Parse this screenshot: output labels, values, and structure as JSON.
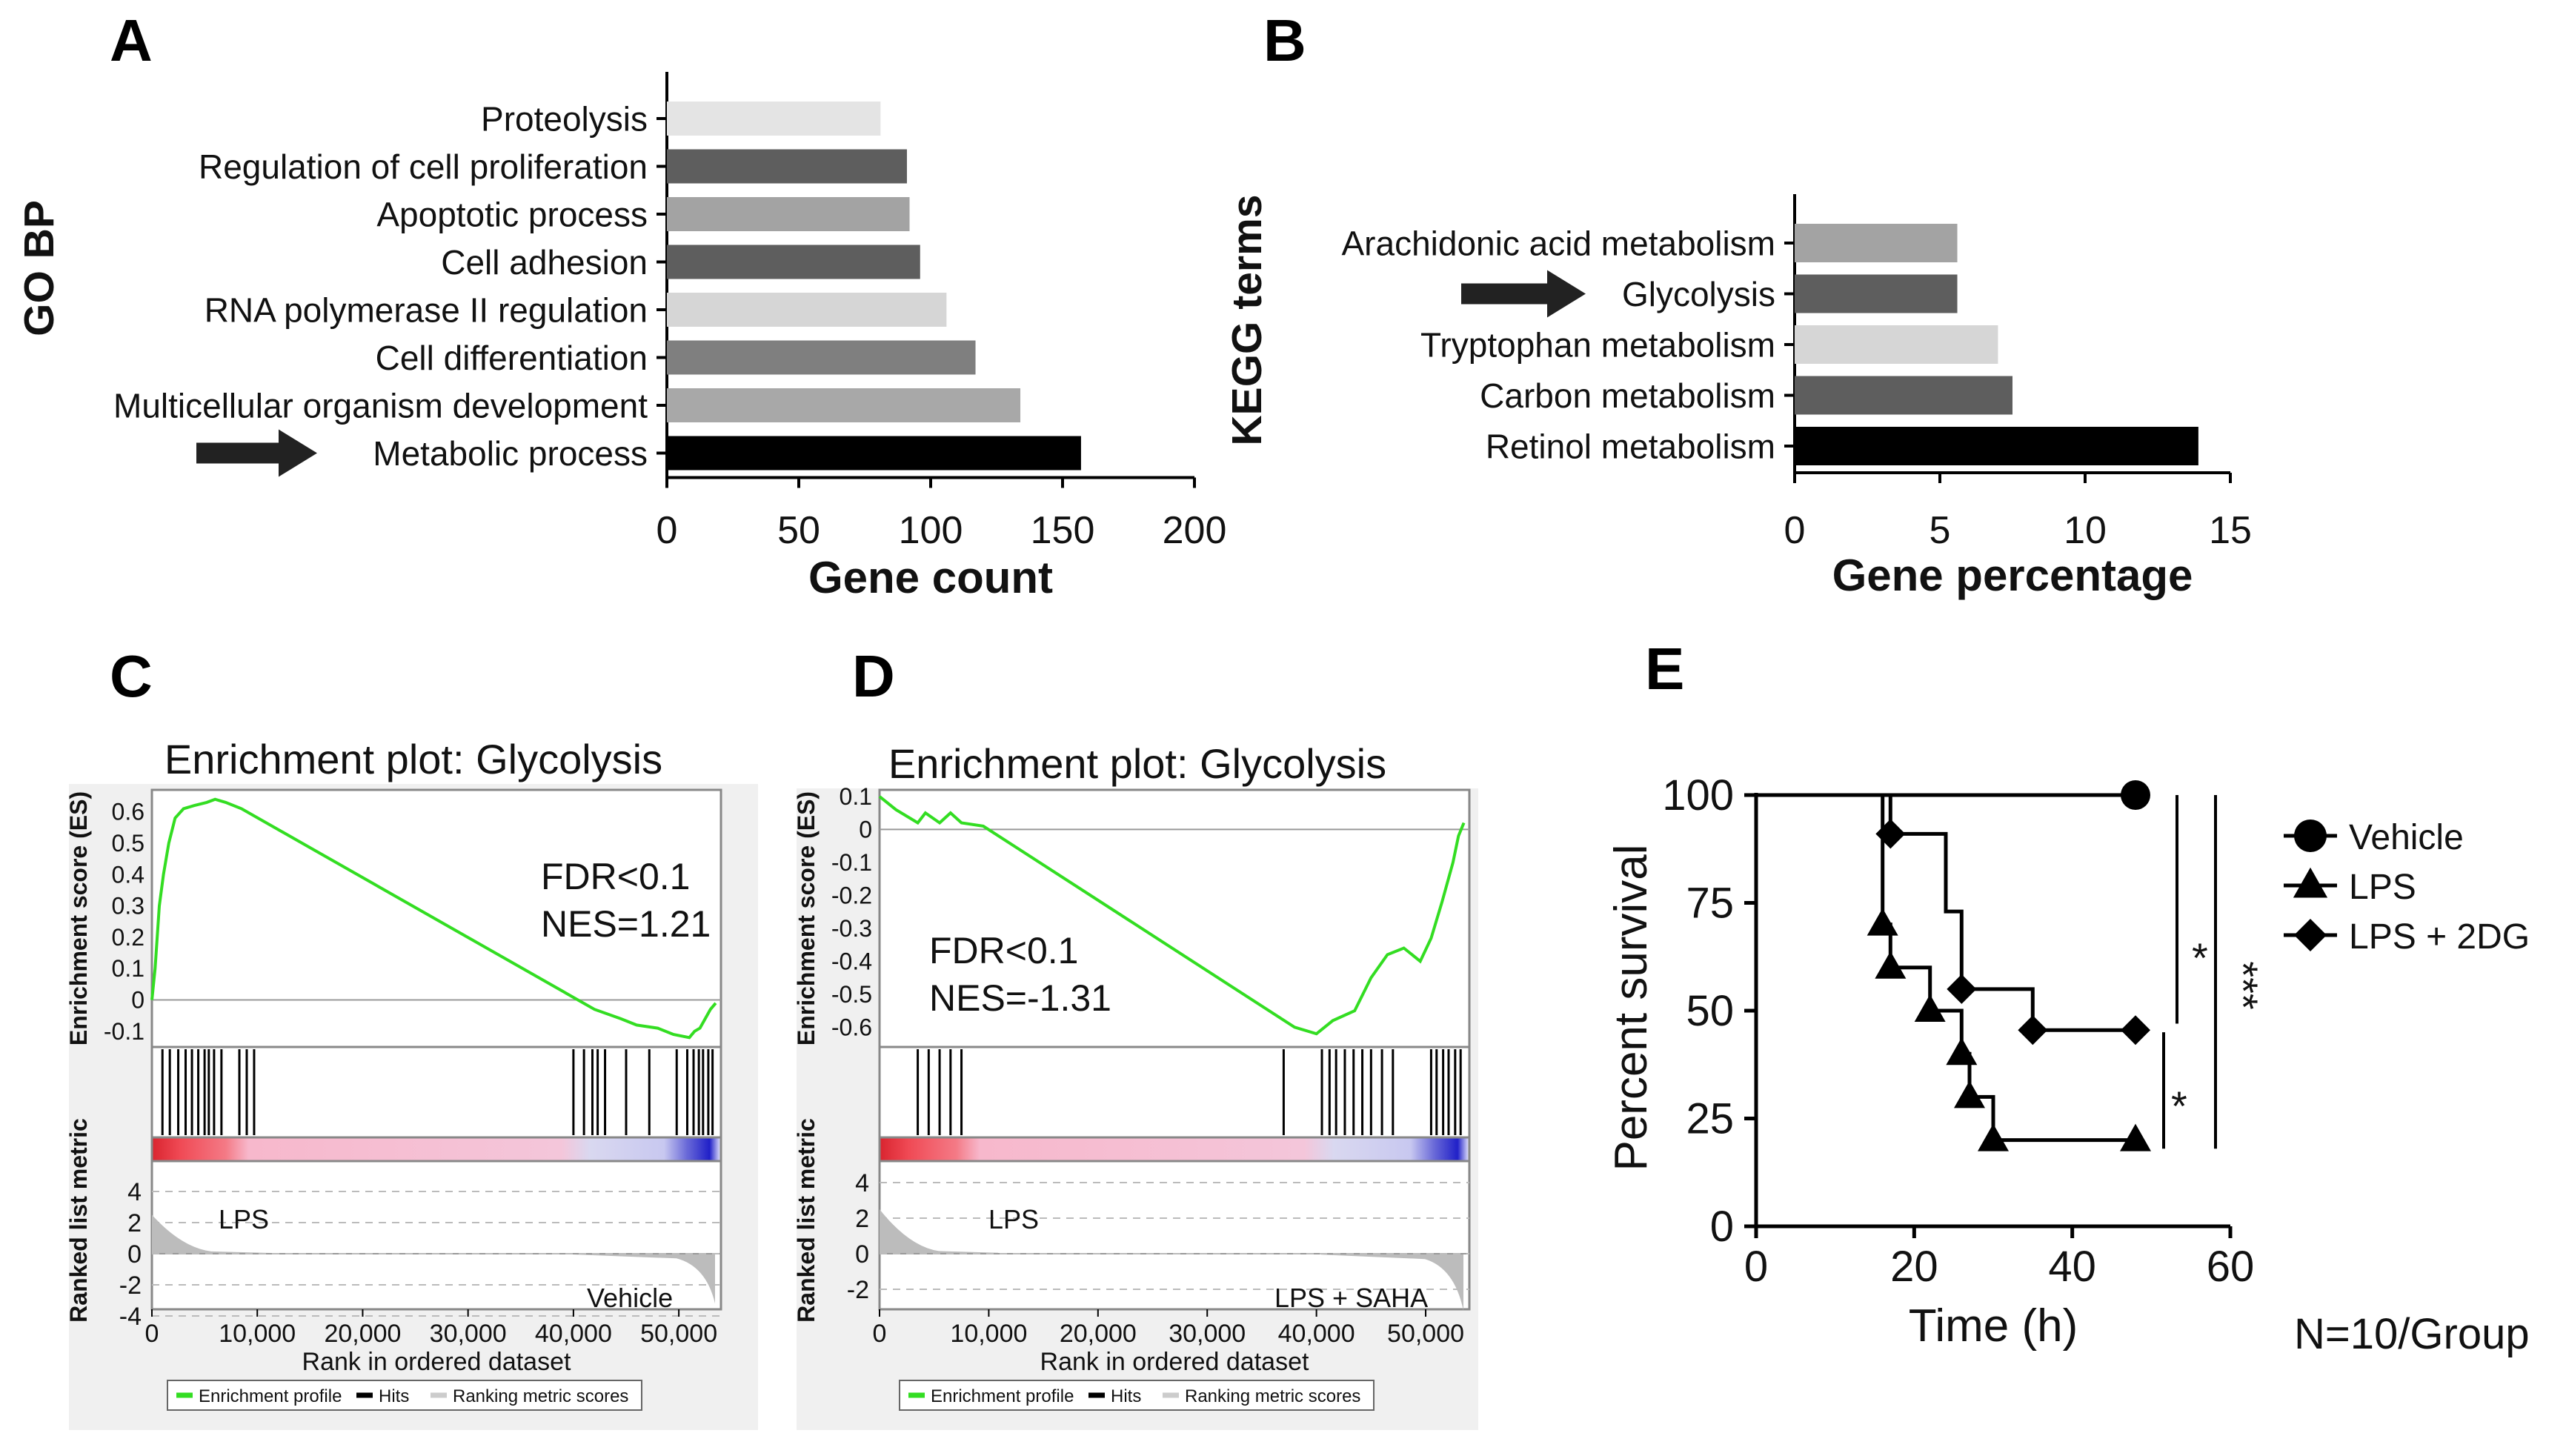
{
  "chart_data": [
    {
      "panel": "A",
      "type": "bar",
      "orientation": "horizontal",
      "ylabel": "GO BP",
      "xlabel": "Gene count",
      "xlim": [
        0,
        200
      ],
      "xticks": [
        "0",
        "50",
        "100",
        "150",
        "200"
      ],
      "categories": [
        "Proteolysis",
        "Regulation of cell proliferation",
        "Apoptotic process",
        "Cell adhesion",
        "RNA polymerase II regulation",
        "Cell differentiation",
        "Multicellular organism development",
        "Metabolic process"
      ],
      "values": [
        81,
        91,
        92,
        96,
        106,
        117,
        134,
        157
      ],
      "colors": [
        "#e4e4e4",
        "#5e5e5e",
        "#a3a3a3",
        "#5e5e5e",
        "#d6d6d6",
        "#7f7f7f",
        "#a8a8a8",
        "#000000"
      ],
      "highlight": "Metabolic process"
    },
    {
      "panel": "B",
      "type": "bar",
      "orientation": "horizontal",
      "ylabel": "KEGG terms",
      "xlabel": "Gene percentage",
      "xlim": [
        0,
        15
      ],
      "xticks": [
        "0",
        "5",
        "10",
        "15"
      ],
      "categories": [
        "Arachidonic acid metabolism",
        "Glycolysis",
        "Tryptophan metabolism",
        "Carbon metabolism",
        "Retinol metabolism"
      ],
      "values": [
        5.6,
        5.6,
        7.0,
        7.5,
        13.9
      ],
      "colors": [
        "#a3a3a3",
        "#5e5e5e",
        "#d6d6d6",
        "#5e5e5e",
        "#000000"
      ],
      "highlight": "Glycolysis"
    },
    {
      "panel": "C",
      "type": "line",
      "title": "Enrichment plot: Glycolysis",
      "ylabel": "Enrichment score (ES)",
      "ylabel2": "Ranked list metric",
      "xlabel": "Rank in ordered dataset",
      "xlim": [
        0,
        54000
      ],
      "ylim": [
        -0.15,
        0.67
      ],
      "yticks": [
        "0.6",
        "0.5",
        "0.4",
        "0.3",
        "0.2",
        "0.1",
        "0",
        "-0.1"
      ],
      "metric_yticks": [
        "4",
        "2",
        "0",
        "-2",
        "-4"
      ],
      "xticks": [
        "0",
        "10,000",
        "20,000",
        "30,000",
        "40,000",
        "50,000"
      ],
      "x": [
        0,
        300,
        700,
        1100,
        1600,
        2200,
        3000,
        4000,
        5200,
        6000,
        7000,
        8500,
        42000,
        44500,
        46000,
        48000,
        49500,
        51000,
        51500,
        52000,
        52500,
        53000,
        53500
      ],
      "values": [
        0.0,
        0.1,
        0.3,
        0.4,
        0.5,
        0.58,
        0.61,
        0.62,
        0.63,
        0.64,
        0.63,
        0.61,
        -0.03,
        -0.06,
        -0.08,
        -0.09,
        -0.11,
        -0.12,
        -0.1,
        -0.09,
        -0.06,
        -0.03,
        -0.01
      ],
      "hits_left": [
        1000,
        1700,
        2500,
        3200,
        3800,
        4400,
        5000,
        5400,
        5900,
        6600,
        8300,
        9000,
        9700
      ],
      "hits_right": [
        40000,
        41000,
        41800,
        42300,
        43000,
        45000,
        47200,
        49800,
        50800,
        51400,
        51900,
        52300,
        52800,
        53200
      ],
      "stats": [
        "FDR<0.1",
        "NES=1.21"
      ],
      "label_pos": "LPS",
      "label_neg": "Vehicle",
      "legend": [
        "Enrichment profile",
        "Hits",
        "Ranking metric scores"
      ]
    },
    {
      "panel": "D",
      "type": "line",
      "title": "Enrichment plot: Glycolysis",
      "ylabel": "Enrichment score (ES)",
      "ylabel2": "Ranked list metric",
      "xlabel": "Rank in ordered dataset",
      "xlim": [
        0,
        54000
      ],
      "ylim": [
        -0.66,
        0.12
      ],
      "yticks": [
        "0.1",
        "0",
        "-0.1",
        "-0.2",
        "-0.3",
        "-0.4",
        "-0.5",
        "-0.6"
      ],
      "metric_yticks": [
        "4",
        "2",
        "0",
        "-2"
      ],
      "xticks": [
        "0",
        "10,000",
        "20,000",
        "30,000",
        "40,000",
        "50,000"
      ],
      "x": [
        0,
        1500,
        3500,
        4200,
        5500,
        6500,
        7500,
        9500,
        38000,
        40000,
        41500,
        43500,
        45000,
        46500,
        48000,
        49500,
        50500,
        51500,
        52500,
        53000,
        53500
      ],
      "values": [
        0.1,
        0.06,
        0.02,
        0.05,
        0.02,
        0.05,
        0.02,
        0.01,
        -0.6,
        -0.62,
        -0.58,
        -0.55,
        -0.45,
        -0.38,
        -0.36,
        -0.4,
        -0.33,
        -0.22,
        -0.1,
        -0.02,
        0.02
      ],
      "hits_left": [
        3500,
        4500,
        5500,
        6500,
        7500
      ],
      "hits_right": [
        37000,
        40500,
        41200,
        41800,
        42600,
        43400,
        44200,
        45000,
        46000,
        47000,
        50500,
        51000,
        51600,
        52100,
        52700,
        53200
      ],
      "stats": [
        "FDR<0.1",
        "NES=-1.31"
      ],
      "label_pos": "LPS",
      "label_neg": "LPS + SAHA",
      "legend": [
        "Enrichment profile",
        "Hits",
        "Ranking metric scores"
      ]
    },
    {
      "panel": "E",
      "type": "line",
      "subtype": "kaplan-meier",
      "xlabel": "Time (h)",
      "ylabel": "Percent survival",
      "xlim": [
        0,
        60
      ],
      "ylim": [
        0,
        100
      ],
      "xticks": [
        "0",
        "20",
        "40",
        "60"
      ],
      "yticks": [
        "100",
        "75",
        "50",
        "25",
        "0"
      ],
      "series": [
        {
          "name": "Vehicle",
          "marker": "circle",
          "steps": [
            [
              0,
              100
            ],
            [
              48,
              100
            ]
          ],
          "points": [
            [
              48,
              100
            ]
          ]
        },
        {
          "name": "LPS",
          "marker": "triangle",
          "steps": [
            [
              0,
              100
            ],
            [
              16,
              100
            ],
            [
              16,
              70
            ],
            [
              17,
              70
            ],
            [
              17,
              60
            ],
            [
              22,
              60
            ],
            [
              22,
              50
            ],
            [
              26,
              50
            ],
            [
              26,
              40
            ],
            [
              27,
              40
            ],
            [
              27,
              30
            ],
            [
              30,
              30
            ],
            [
              30,
              20
            ],
            [
              48,
              20
            ]
          ],
          "points": [
            [
              16,
              70
            ],
            [
              17,
              60
            ],
            [
              22,
              50
            ],
            [
              26,
              40
            ],
            [
              27,
              30
            ],
            [
              30,
              20
            ],
            [
              48,
              20
            ]
          ]
        },
        {
          "name": "LPS + 2DG",
          "marker": "diamond",
          "steps": [
            [
              0,
              100
            ],
            [
              17,
              100
            ],
            [
              17,
              91
            ],
            [
              24,
              91
            ],
            [
              24,
              73
            ],
            [
              26,
              73
            ],
            [
              26,
              55
            ],
            [
              35,
              55
            ],
            [
              35,
              45.5
            ],
            [
              48,
              45.5
            ]
          ],
          "points": [
            [
              17,
              91
            ],
            [
              26,
              55
            ],
            [
              35,
              45.5
            ],
            [
              48,
              45.5
            ]
          ]
        }
      ],
      "significance": [
        "*",
        "*",
        "***"
      ],
      "note": "N=10/Group"
    }
  ]
}
